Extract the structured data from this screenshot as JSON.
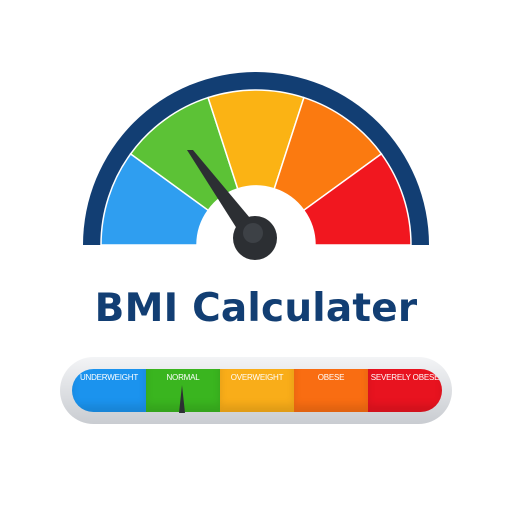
{
  "title": "BMI Calculater",
  "gauge": {
    "segment_colors": [
      "#2f9ef0",
      "#5cc236",
      "#fbb314",
      "#fb7a10",
      "#f1171f"
    ],
    "rim_color": "#123e73",
    "needle_color": "#2c2f33"
  },
  "scale": {
    "segments": [
      {
        "label": "UNDERWEIGHT",
        "color": "#1b93ee"
      },
      {
        "label": "NORMAL",
        "color": "#3ab51f"
      },
      {
        "label": "OVERWEIGHT",
        "color": "#f9ad19"
      },
      {
        "label": "OBESE",
        "color": "#f96d12"
      },
      {
        "label": "SEVERELY OBESE",
        "color": "#e8131f"
      }
    ],
    "indicator_on": "NORMAL"
  }
}
